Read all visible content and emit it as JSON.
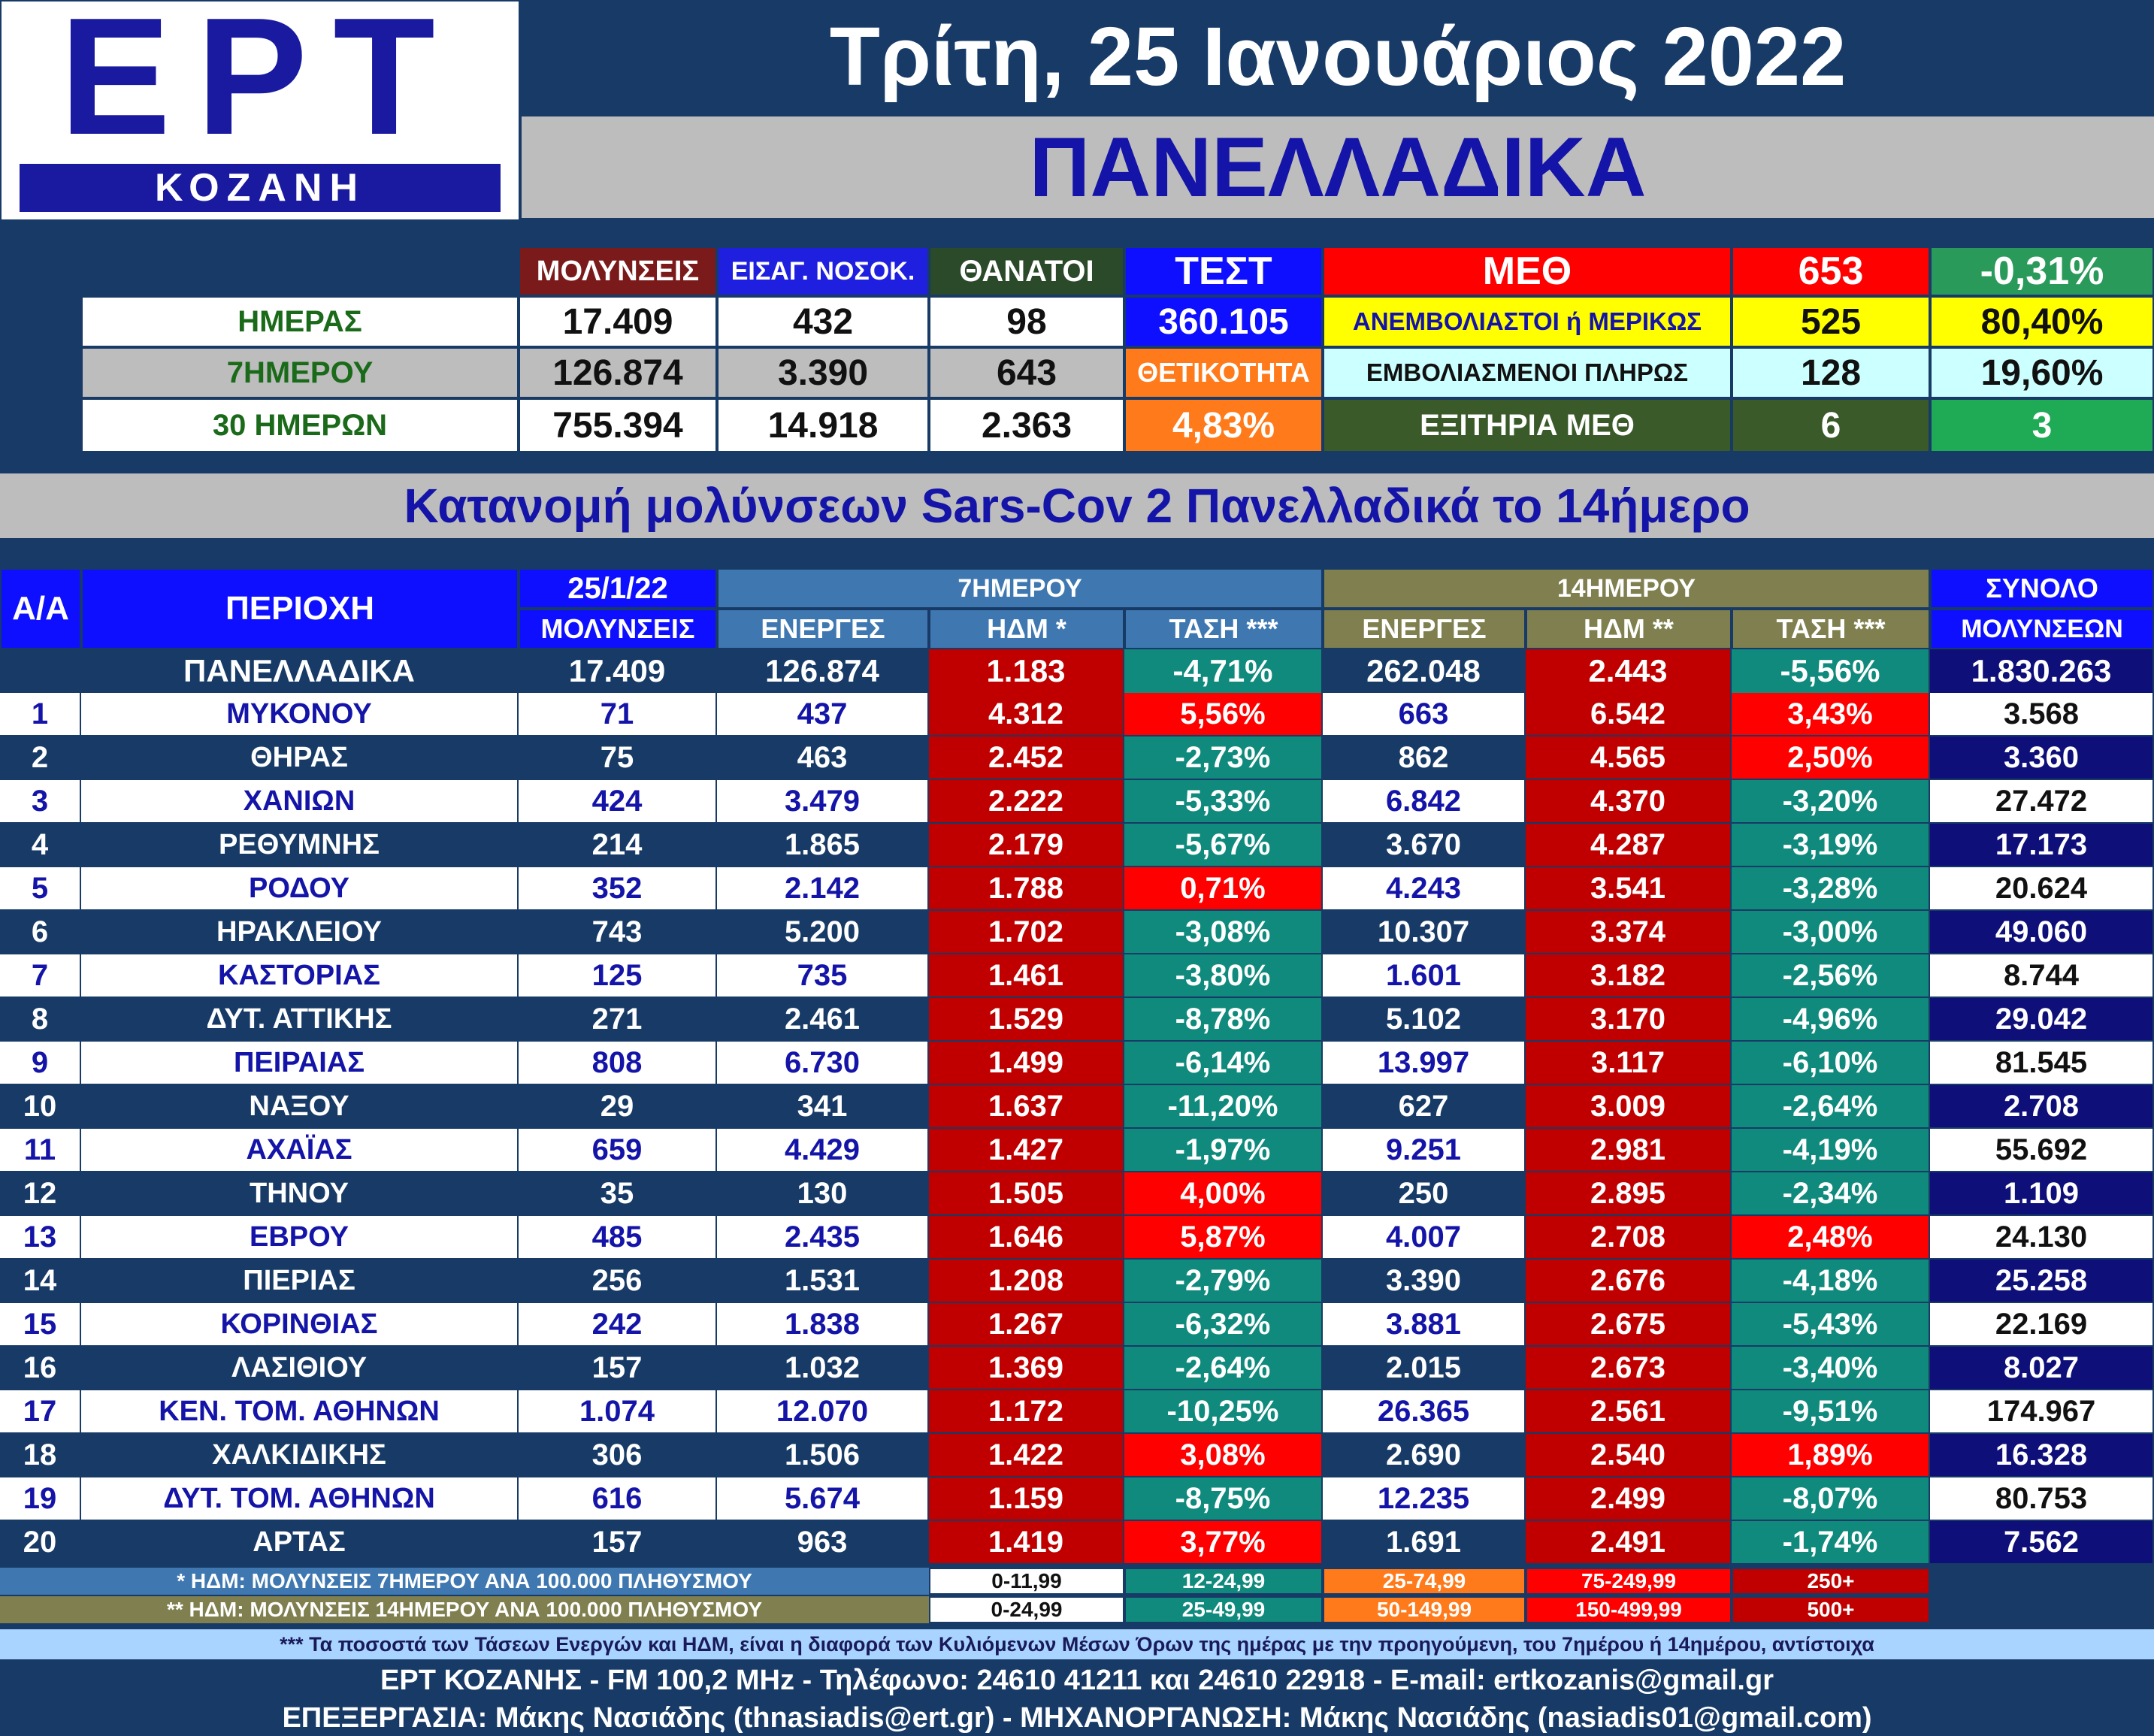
{
  "logo": {
    "brand": "ΕΡΤ",
    "city": "ΚΟΖΑΝΗ"
  },
  "header": {
    "date": "Τρίτη, 25 Ιανουάριος 2022",
    "subtitle": "ΠΑΝΕΛΛΑΔΙΚΑ"
  },
  "summary": {
    "col_infections": "ΜΟΛΥΝΣΕΙΣ",
    "col_admissions": "ΕΙΣΑΓ. ΝΟΣΟΚ.",
    "col_deaths": "ΘΑΝΑΤΟΙ",
    "col_tests": "ΤΕΣΤ",
    "positivity_label": "ΘΕΤΙΚΟΤΗΤΑ",
    "rows": [
      {
        "label": "ΗΜΕΡΑΣ",
        "infections": "17.409",
        "admissions": "432",
        "deaths": "98"
      },
      {
        "label": "7ΗΜΕΡΟΥ",
        "infections": "126.874",
        "admissions": "3.390",
        "deaths": "643"
      },
      {
        "label": "30 ΗΜΕΡΩΝ",
        "infections": "755.394",
        "admissions": "14.918",
        "deaths": "2.363"
      }
    ],
    "tests": "360.105",
    "positivity": "4,83%"
  },
  "icu": {
    "label": "ΜΕΘ",
    "total": "653",
    "change": "-0,31%",
    "unvaccinated_label": "ΑΝΕΜΒΟΛΙΑΣΤΟΙ ή ΜΕΡΙΚΩΣ",
    "unvaccinated": "525",
    "unvaccinated_pct": "80,40%",
    "vaccinated_label": "ΕΜΒΟΛΙΑΣΜΕΝΟΙ ΠΛΗΡΩΣ",
    "vaccinated": "128",
    "vaccinated_pct": "19,60%",
    "discharges_label": "ΕΞΙΤΗΡΙΑ ΜΕΘ",
    "discharges": "6",
    "discharges_2": "3"
  },
  "section_title": "Κατανομή μολύνσεων Sars-Cov 2 Πανελλαδικά το 14ήμερο",
  "table": {
    "h_aa": "Α/Α",
    "h_region": "ΠΕΡΙΟΧΗ",
    "h_date": "25/1/22",
    "h_infections": "ΜΟΛΥΝΣΕΙΣ",
    "h_7day": "7ΗΜΕΡΟΥ",
    "h_14day": "14ΗΜΕΡΟΥ",
    "h_active": "ΕΝΕΡΓΕΣ",
    "h_ndm7": "ΗΔΜ *",
    "h_ndm14": "ΗΔΜ **",
    "h_trend": "ΤΑΣΗ ***",
    "h_total": "ΣΥΝΟΛΟ",
    "h_total2": "ΜΟΛΥΝΣΕΩΝ",
    "national": {
      "region": "ΠΑΝΕΛΛΑΔΙΚΑ",
      "today": "17.409",
      "a7": "126.874",
      "n7": "1.183",
      "t7": "-4,71%",
      "a14": "262.048",
      "n14": "2.443",
      "t14": "-5,56%",
      "total": "1.830.263"
    },
    "rows": [
      {
        "aa": "1",
        "region": "ΜΥΚΟΝΟΥ",
        "today": "71",
        "a7": "437",
        "n7": "4.312",
        "t7": "5,56%",
        "a14": "663",
        "n14": "6.542",
        "t14": "3,43%",
        "total": "3.568"
      },
      {
        "aa": "2",
        "region": "ΘΗΡΑΣ",
        "today": "75",
        "a7": "463",
        "n7": "2.452",
        "t7": "-2,73%",
        "a14": "862",
        "n14": "4.565",
        "t14": "2,50%",
        "total": "3.360"
      },
      {
        "aa": "3",
        "region": "ΧΑΝΙΩΝ",
        "today": "424",
        "a7": "3.479",
        "n7": "2.222",
        "t7": "-5,33%",
        "a14": "6.842",
        "n14": "4.370",
        "t14": "-3,20%",
        "total": "27.472"
      },
      {
        "aa": "4",
        "region": "ΡΕΘΥΜΝΗΣ",
        "today": "214",
        "a7": "1.865",
        "n7": "2.179",
        "t7": "-5,67%",
        "a14": "3.670",
        "n14": "4.287",
        "t14": "-3,19%",
        "total": "17.173"
      },
      {
        "aa": "5",
        "region": "ΡΟΔΟΥ",
        "today": "352",
        "a7": "2.142",
        "n7": "1.788",
        "t7": "0,71%",
        "a14": "4.243",
        "n14": "3.541",
        "t14": "-3,28%",
        "total": "20.624"
      },
      {
        "aa": "6",
        "region": "ΗΡΑΚΛΕΙΟΥ",
        "today": "743",
        "a7": "5.200",
        "n7": "1.702",
        "t7": "-3,08%",
        "a14": "10.307",
        "n14": "3.374",
        "t14": "-3,00%",
        "total": "49.060"
      },
      {
        "aa": "7",
        "region": "ΚΑΣΤΟΡΙΑΣ",
        "today": "125",
        "a7": "735",
        "n7": "1.461",
        "t7": "-3,80%",
        "a14": "1.601",
        "n14": "3.182",
        "t14": "-2,56%",
        "total": "8.744"
      },
      {
        "aa": "8",
        "region": "ΔΥΤ. ΑΤΤΙΚΗΣ",
        "today": "271",
        "a7": "2.461",
        "n7": "1.529",
        "t7": "-8,78%",
        "a14": "5.102",
        "n14": "3.170",
        "t14": "-4,96%",
        "total": "29.042"
      },
      {
        "aa": "9",
        "region": "ΠΕΙΡΑΙΑΣ",
        "today": "808",
        "a7": "6.730",
        "n7": "1.499",
        "t7": "-6,14%",
        "a14": "13.997",
        "n14": "3.117",
        "t14": "-6,10%",
        "total": "81.545"
      },
      {
        "aa": "10",
        "region": "ΝΑΞΟΥ",
        "today": "29",
        "a7": "341",
        "n7": "1.637",
        "t7": "-11,20%",
        "a14": "627",
        "n14": "3.009",
        "t14": "-2,64%",
        "total": "2.708"
      },
      {
        "aa": "11",
        "region": "ΑΧΑΪΑΣ",
        "today": "659",
        "a7": "4.429",
        "n7": "1.427",
        "t7": "-1,97%",
        "a14": "9.251",
        "n14": "2.981",
        "t14": "-4,19%",
        "total": "55.692"
      },
      {
        "aa": "12",
        "region": "ΤΗΝΟΥ",
        "today": "35",
        "a7": "130",
        "n7": "1.505",
        "t7": "4,00%",
        "a14": "250",
        "n14": "2.895",
        "t14": "-2,34%",
        "total": "1.109"
      },
      {
        "aa": "13",
        "region": "ΕΒΡΟΥ",
        "today": "485",
        "a7": "2.435",
        "n7": "1.646",
        "t7": "5,87%",
        "a14": "4.007",
        "n14": "2.708",
        "t14": "2,48%",
        "total": "24.130"
      },
      {
        "aa": "14",
        "region": "ΠΙΕΡΙΑΣ",
        "today": "256",
        "a7": "1.531",
        "n7": "1.208",
        "t7": "-2,79%",
        "a14": "3.390",
        "n14": "2.676",
        "t14": "-4,18%",
        "total": "25.258"
      },
      {
        "aa": "15",
        "region": "ΚΟΡΙΝΘΙΑΣ",
        "today": "242",
        "a7": "1.838",
        "n7": "1.267",
        "t7": "-6,32%",
        "a14": "3.881",
        "n14": "2.675",
        "t14": "-5,43%",
        "total": "22.169"
      },
      {
        "aa": "16",
        "region": "ΛΑΣΙΘΙΟΥ",
        "today": "157",
        "a7": "1.032",
        "n7": "1.369",
        "t7": "-2,64%",
        "a14": "2.015",
        "n14": "2.673",
        "t14": "-3,40%",
        "total": "8.027"
      },
      {
        "aa": "17",
        "region": "ΚΕΝ. ΤΟΜ. ΑΘΗΝΩΝ",
        "today": "1.074",
        "a7": "12.070",
        "n7": "1.172",
        "t7": "-10,25%",
        "a14": "26.365",
        "n14": "2.561",
        "t14": "-9,51%",
        "total": "174.967"
      },
      {
        "aa": "18",
        "region": "ΧΑΛΚΙΔΙΚΗΣ",
        "today": "306",
        "a7": "1.506",
        "n7": "1.422",
        "t7": "3,08%",
        "a14": "2.690",
        "n14": "2.540",
        "t14": "1,89%",
        "total": "16.328"
      },
      {
        "aa": "19",
        "region": "ΔΥΤ. ΤΟΜ. ΑΘΗΝΩΝ",
        "today": "616",
        "a7": "5.674",
        "n7": "1.159",
        "t7": "-8,75%",
        "a14": "12.235",
        "n14": "2.499",
        "t14": "-8,07%",
        "total": "80.753"
      },
      {
        "aa": "20",
        "region": "ΑΡΤΑΣ",
        "today": "157",
        "a7": "963",
        "n7": "1.419",
        "t7": "3,77%",
        "a14": "1.691",
        "n14": "2.491",
        "t14": "-1,74%",
        "total": "7.562"
      }
    ]
  },
  "legend": {
    "row7_label": "* ΗΔΜ: ΜΟΛΥΝΣΕΙΣ 7ΗΜΕΡΟΥ ΑΝΑ 100.000 ΠΛΗΘΥΣΜΟΥ",
    "row14_label": "** ΗΔΜ: ΜΟΛΥΝΣΕΙΣ 14ΗΜΕΡΟΥ ΑΝΑ 100.000 ΠΛΗΘΥΣΜΟΥ",
    "row7": [
      "0-11,99",
      "12-24,99",
      "25-74,99",
      "75-249,99",
      "250+"
    ],
    "row14": [
      "0-24,99",
      "25-49,99",
      "50-149,99",
      "150-499,99",
      "500+"
    ]
  },
  "footer": {
    "note": "*** Τα ποσοστά των Τάσεων Ενεργών και ΗΔΜ, είναι η διαφορά των Κυλιόμενων Μέσων Όρων της ημέρας με την προηγούμενη, του 7ημέρου ή 14ημέρου, αντίστοιχα",
    "contact": "ΕΡΤ ΚΟΖΑΝΗΣ - FM 100,2 MHz - Τηλέφωνο:  24610 41211 και 24610 22918 - E-mail: ertkozanis@gmail.gr",
    "credits": "ΕΠΕΞΕΡΓΑΣΙΑ: Μάκης Νασιάδης (thnasiadis@ert.gr) - ΜΗΧΑΝΟΡΓΑΝΩΣΗ: Μάκης Νασιάδης (nasiadis01@gmail.com)"
  },
  "colors": {
    "navy": "#173a66",
    "brand_blue": "#1a1aa0",
    "header_blue": "#0f0fff",
    "title_blue": "#1414a8",
    "ndm_red": "#c00000",
    "trend_up_red": "#ff0000",
    "trend_down_teal": "#0f8a7c",
    "icu_yellow": "#ffff00",
    "icu_cyan": "#ccffff",
    "icu_green": "#33aa55",
    "positivity_orange": "#ff7a1a",
    "col7_blue": "#3f78b0",
    "col14_olive": "#7f7f4f"
  }
}
